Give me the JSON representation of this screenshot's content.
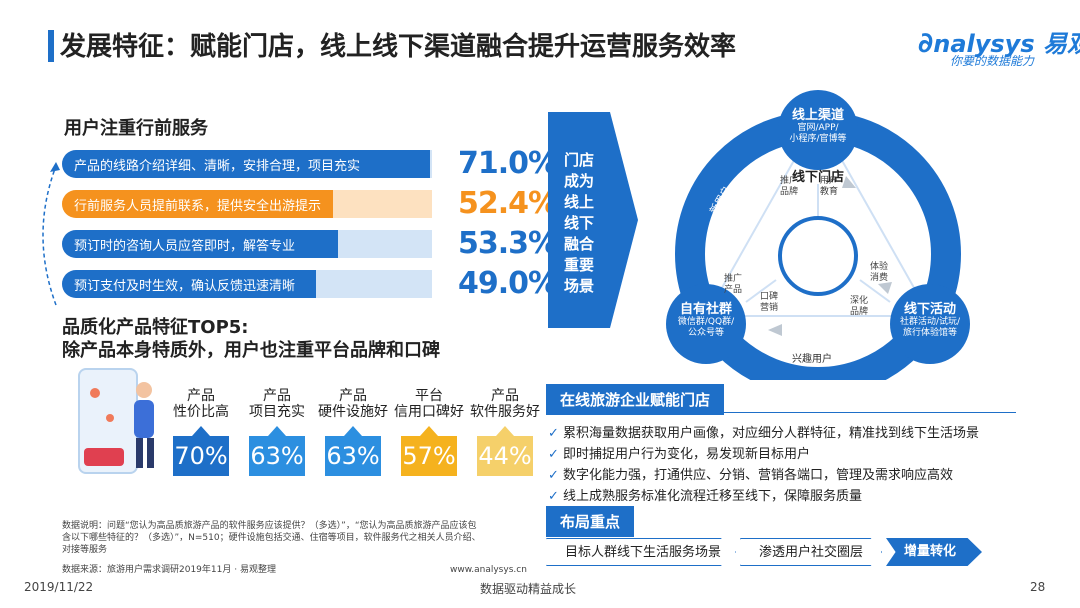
{
  "header": {
    "title": "发展特征：赋能门店，线上线下渠道融合提升运营服务效率",
    "logo_text": "nalysys 易观",
    "logo_slogan": "你要的数据能力"
  },
  "user_service": {
    "heading": "用户注重行前服务",
    "bars": [
      {
        "label": "产品的线路介绍详细、清晰，安排合理，项目充实",
        "value_text": "71.0%",
        "value": 71.0,
        "color": "#1e6fc8"
      },
      {
        "label": "行前服务人员提前联系，提供安全出游提示",
        "value_text": "52.4%",
        "value": 52.4,
        "color": "#f5921e"
      },
      {
        "label": "预订时的咨询人员应答即时，解答专业",
        "value_text": "53.3%",
        "value": 53.3,
        "color": "#1e6fc8"
      },
      {
        "label": "预订支付及时生效，确认反馈迅速清晰",
        "value_text": "49.0%",
        "value": 49.0,
        "color": "#1e6fc8"
      }
    ]
  },
  "top5": {
    "heading_line1": "品质化产品特征TOP5:",
    "heading_line2": "除产品本身特质外，用户也注重平台品牌和口碑",
    "items": [
      {
        "line1": "产品",
        "line2": "性价比高",
        "value": "70%",
        "color": "#1e6fc8"
      },
      {
        "line1": "产品",
        "line2": "项目充实",
        "value": "63%",
        "color": "#2c8fe0"
      },
      {
        "line1": "产品",
        "line2": "硬件设施好",
        "value": "63%",
        "color": "#2c8fe0"
      },
      {
        "line1": "平台",
        "line2": "信用口碑好",
        "value": "57%",
        "color": "#f5b21e"
      },
      {
        "line1": "产品",
        "line2": "软件服务好",
        "value": "44%",
        "color": "#f5d06a"
      }
    ]
  },
  "banner": {
    "text": "门店成为线上线下融合重要场景"
  },
  "cycle": {
    "center": "线下门店",
    "online": {
      "title": "线上渠道",
      "sub1": "官网/APP/",
      "sub2": "小程序/官博等"
    },
    "social": {
      "title": "自有社群",
      "sub1": "微信群/QQ群/",
      "sub2": "公众号等"
    },
    "offline": {
      "title": "线下活动",
      "sub1": "社群活动/试玩/",
      "sub2": "旅行体验馆等"
    },
    "ring_labels": {
      "left": "新用户",
      "right": "老用户",
      "bottom": "兴趣用户"
    },
    "inner_labels": {
      "promo_brand": "推广品牌",
      "user_edu": "用户教育",
      "promo_product": "推广产品",
      "word_of_mouth": "口碑营销",
      "experience": "体验消费",
      "deep_brand": "深化品牌"
    }
  },
  "enable": {
    "tab": "在线旅游企业赋能门店",
    "bullets": [
      "累积海量数据获取用户画像，对应细分人群特征，精准找到线下生活场景",
      "即时捕捉用户行为变化，易发现新目标用户",
      "数字化能力强，打通供应、分销、营销各端口，管理及需求响应高效",
      "线上成熟服务标准化流程迁移至线下，保障服务质量"
    ]
  },
  "layout_focus": {
    "tab": "布局重点",
    "steps": [
      "目标人群线下生活服务场景",
      "渗透用户社交圈层",
      "增量转化"
    ]
  },
  "notes": {
    "data_note": "数据说明：问题“您认为高品质旅游产品的软件服务应该提供？（多选）”，“您认为高品质旅游产品应该包含以下哪些特征的？（多选）”，N=510；硬件设施包括交通、住宿等项目，软件服务代之相关人员介绍、对接等服务",
    "source": "数据来源：旅游用户需求调研2019年11月 · 易观整理",
    "site": "www.analysys.cn"
  },
  "footer": {
    "date": "2019/11/22",
    "slogan": "数据驱动精益成长",
    "page": "28"
  }
}
